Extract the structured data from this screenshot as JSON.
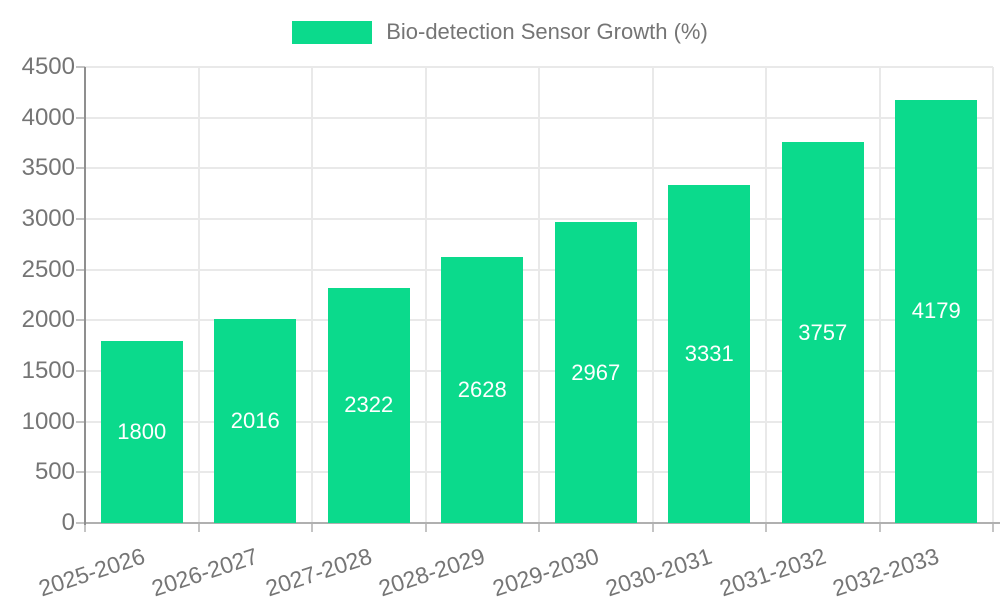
{
  "chart_data": {
    "type": "bar",
    "title": "Bio-detection Sensor Growth (%)",
    "categories": [
      "2025-2026",
      "2026-2027",
      "2027-2028",
      "2028-2029",
      "2029-2030",
      "2030-2031",
      "2031-2032",
      "2032-2033"
    ],
    "values": [
      1800,
      2016,
      2322,
      2628,
      2967,
      3331,
      3757,
      4179
    ],
    "xlabel": "",
    "ylabel": "",
    "ylim": [
      0,
      4500
    ],
    "ytick_step": 500,
    "ytick_labels": [
      "0",
      "500",
      "1000",
      "1500",
      "2000",
      "2500",
      "3000",
      "3500",
      "4000",
      "4500"
    ],
    "grid": true,
    "legend_position": "top-center",
    "x_label_rotation_deg": -18,
    "value_labels_shown_inside_bars": true
  },
  "colors": {
    "bar": "#0bda8c",
    "bar_value_text": "#ffffff",
    "axis_label_text": "#757575",
    "legend_text": "#757575",
    "gridline": "#e9e9e9",
    "y_axis_line": "#8f8f8f",
    "x_axis_line": "#b0b0b0",
    "tick": "#c4c4c4",
    "background": "#ffffff"
  }
}
